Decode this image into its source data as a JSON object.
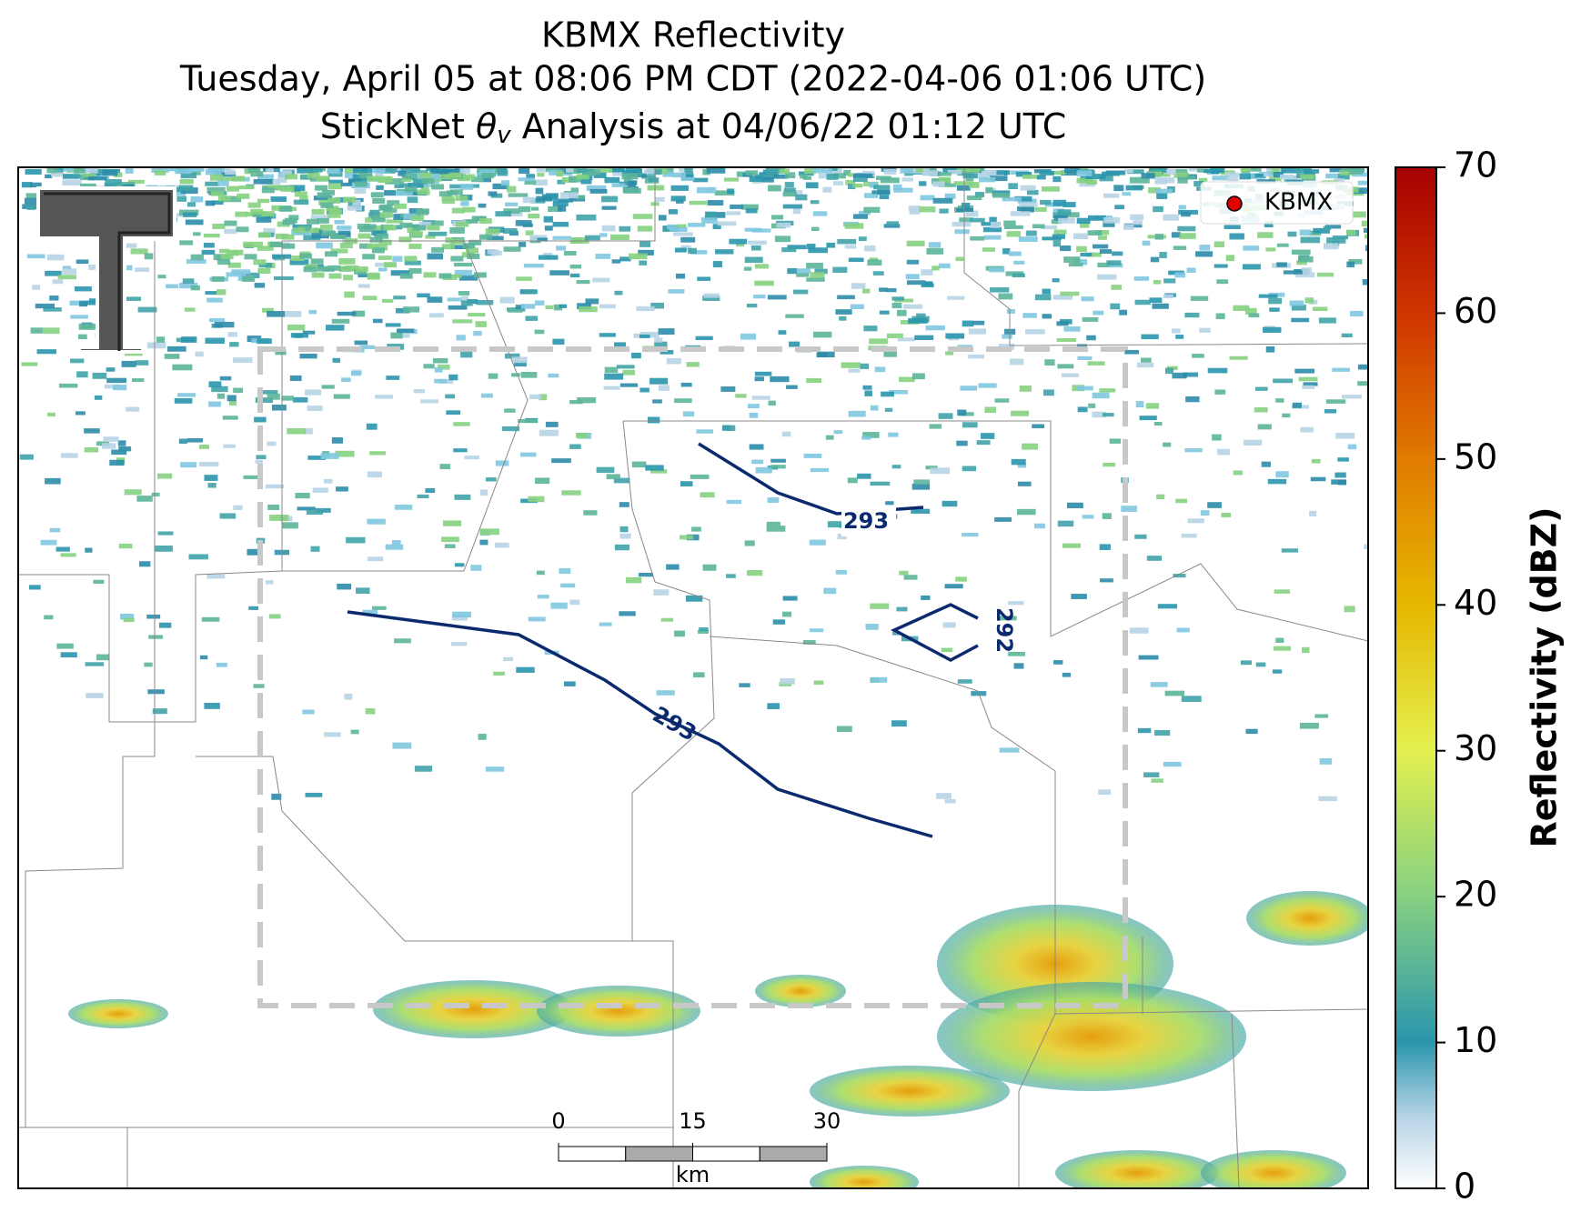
{
  "chart_data": {
    "type": "radar_map",
    "title": "KBMX Reflectivity",
    "subtitle": "Tuesday, April 05 at 08:06 PM CDT (2022-04-06 01:06 UTC)",
    "analysis_title": {
      "pre": "StickNet ",
      "symbol": "θ",
      "sub": "v",
      "post": " Analysis at 04/06/22 01:12 UTC"
    },
    "legend": [
      "KBMX"
    ],
    "colorbar": {
      "label": "Reflectivity (dBZ)",
      "lim": [
        0,
        70
      ],
      "ticks": [
        0,
        10,
        20,
        30,
        40,
        50,
        60,
        70
      ]
    },
    "contour_labels": [
      293,
      292,
      293
    ],
    "scale_bar": {
      "ticks": [
        0,
        15,
        30
      ],
      "unit": "km"
    }
  }
}
